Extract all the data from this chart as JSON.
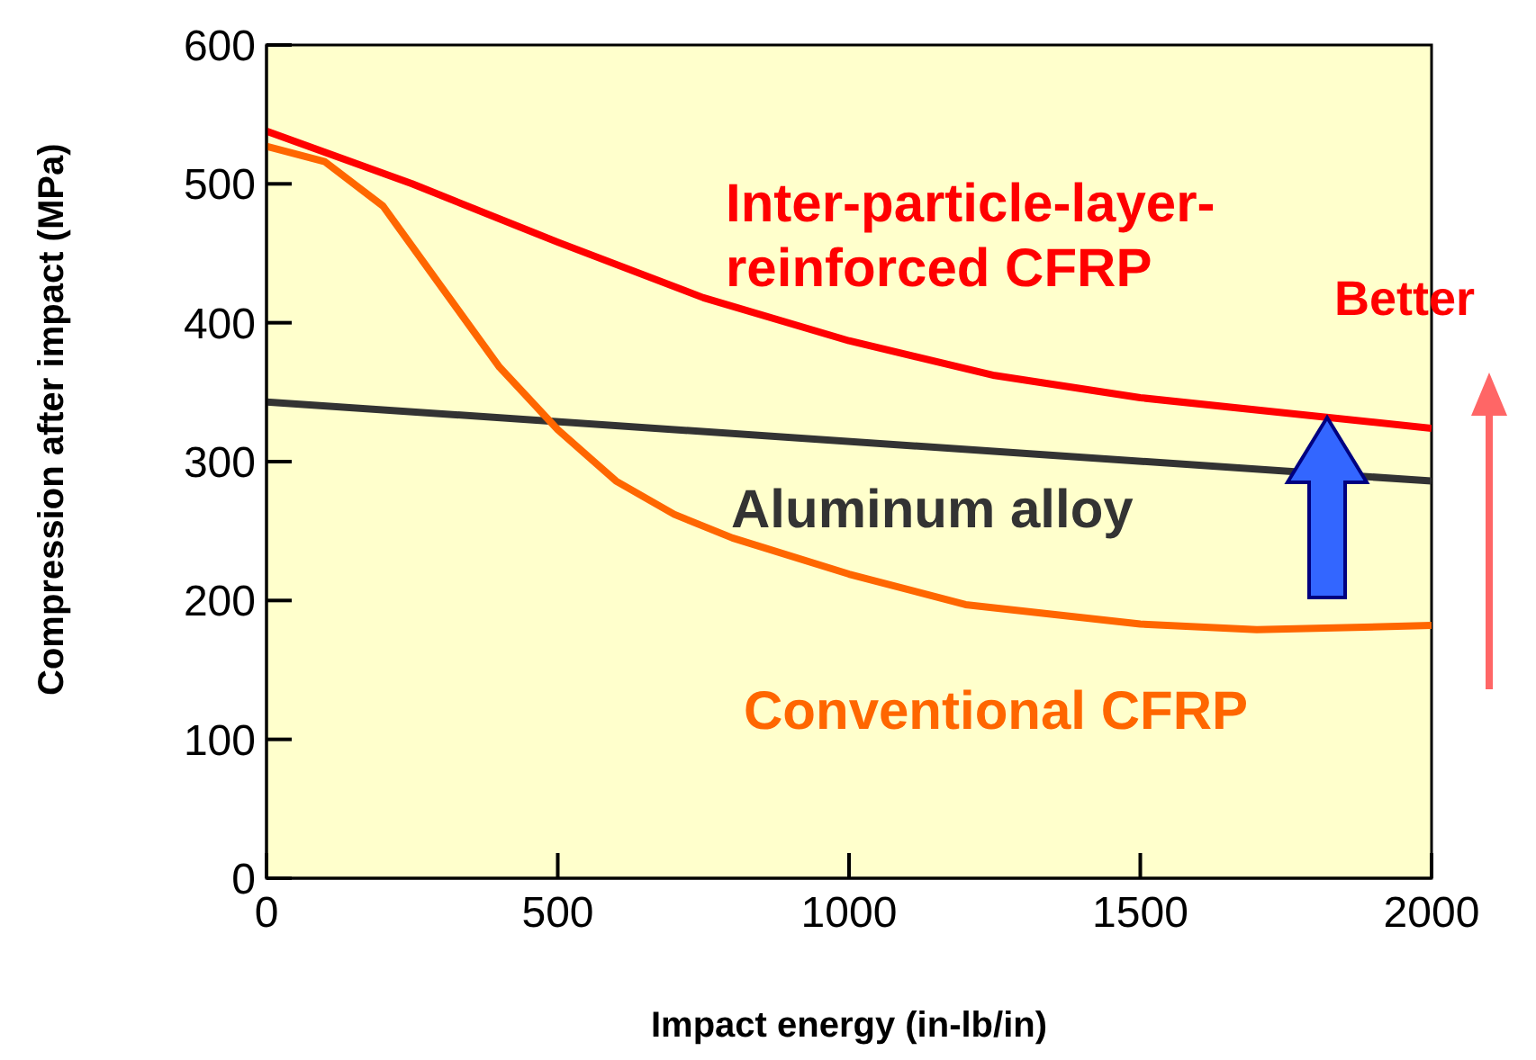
{
  "chart_data": {
    "type": "line",
    "xlabel": "Impact energy (in-lb/in)",
    "ylabel": "Compression after impact  (MPa)",
    "xlim": [
      0,
      2000
    ],
    "xticks": [
      0,
      500,
      1000,
      1500,
      2000
    ],
    "ylim": [
      0,
      600
    ],
    "yticks": [
      0,
      100,
      200,
      300,
      400,
      500,
      600
    ],
    "marker": "none",
    "line_style": "solid",
    "annotations": [
      "Better"
    ],
    "series": [
      {
        "name": "Inter-particle-layer-reinforced CFRP",
        "color": "#ff0000",
        "x": [
          0,
          250,
          500,
          750,
          1000,
          1250,
          1500,
          1750,
          2000
        ],
        "values": [
          538,
          500,
          458,
          418,
          387,
          362,
          346,
          335,
          324
        ]
      },
      {
        "name": "Aluminum alloy",
        "color": "#333333",
        "x": [
          0,
          2000
        ],
        "values": [
          343,
          286
        ]
      },
      {
        "name": "Conventional CFRP",
        "color": "#ff6600",
        "x": [
          0,
          100,
          200,
          300,
          400,
          500,
          600,
          700,
          800,
          1000,
          1200,
          1500,
          1700,
          2000
        ],
        "values": [
          527,
          516,
          484,
          426,
          368,
          323,
          286,
          262,
          245,
          219,
          197,
          183,
          179,
          182
        ]
      }
    ]
  }
}
